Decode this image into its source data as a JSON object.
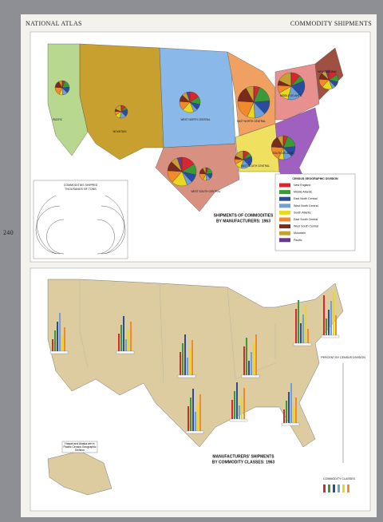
{
  "header": {
    "left": "NATIONAL ATLAS",
    "right": "COMMODITY SHIPMENTS"
  },
  "page_number": "240",
  "top_map": {
    "title": "SHIPMENTS OF COMMODITIES",
    "subtitle": "BY MANUFACTURERS: 1963",
    "region_labels": [
      "PACIFIC",
      "MOUNTAIN",
      "WEST NORTH CENTRAL",
      "EAST NORTH CENTRAL",
      "MIDDLE ATLANTIC",
      "NEW ENGLAND",
      "SOUTH ATLANTIC",
      "EAST SOUTH CENTRAL",
      "WEST SOUTH CENTRAL"
    ],
    "legend": {
      "title": "CENSUS GEOGRAPHIC DIVISION",
      "items": [
        {
          "name": "New England",
          "color": "#d8262e"
        },
        {
          "name": "Middle Atlantic",
          "color": "#3a9a3a"
        },
        {
          "name": "East North Central",
          "color": "#2a4ca0"
        },
        {
          "name": "West North Central",
          "color": "#6fa0d8"
        },
        {
          "name": "South Atlantic",
          "color": "#e8d820"
        },
        {
          "name": "East South Central",
          "color": "#f08a2a"
        },
        {
          "name": "West South Central",
          "color": "#7a2a1a"
        },
        {
          "name": "Mountain",
          "color": "#c8a030"
        },
        {
          "name": "Pacific",
          "color": "#6a3a8a"
        }
      ]
    },
    "size_legend": {
      "title": "COMMODITIES SHIPPED",
      "subtitle": "THOUSANDS OF TONS"
    }
  },
  "bottom_map": {
    "title": "MANUFACTURERS' SHIPMENTS",
    "subtitle": "BY COMMODITY CLASSES: 1963",
    "percent_label": "PERCENT BY CENSUS DIVISION",
    "classes_title": "COMMODITY CLASSES",
    "note": "Hawaii and Alaska are in Pacific Census Geographic Division"
  }
}
